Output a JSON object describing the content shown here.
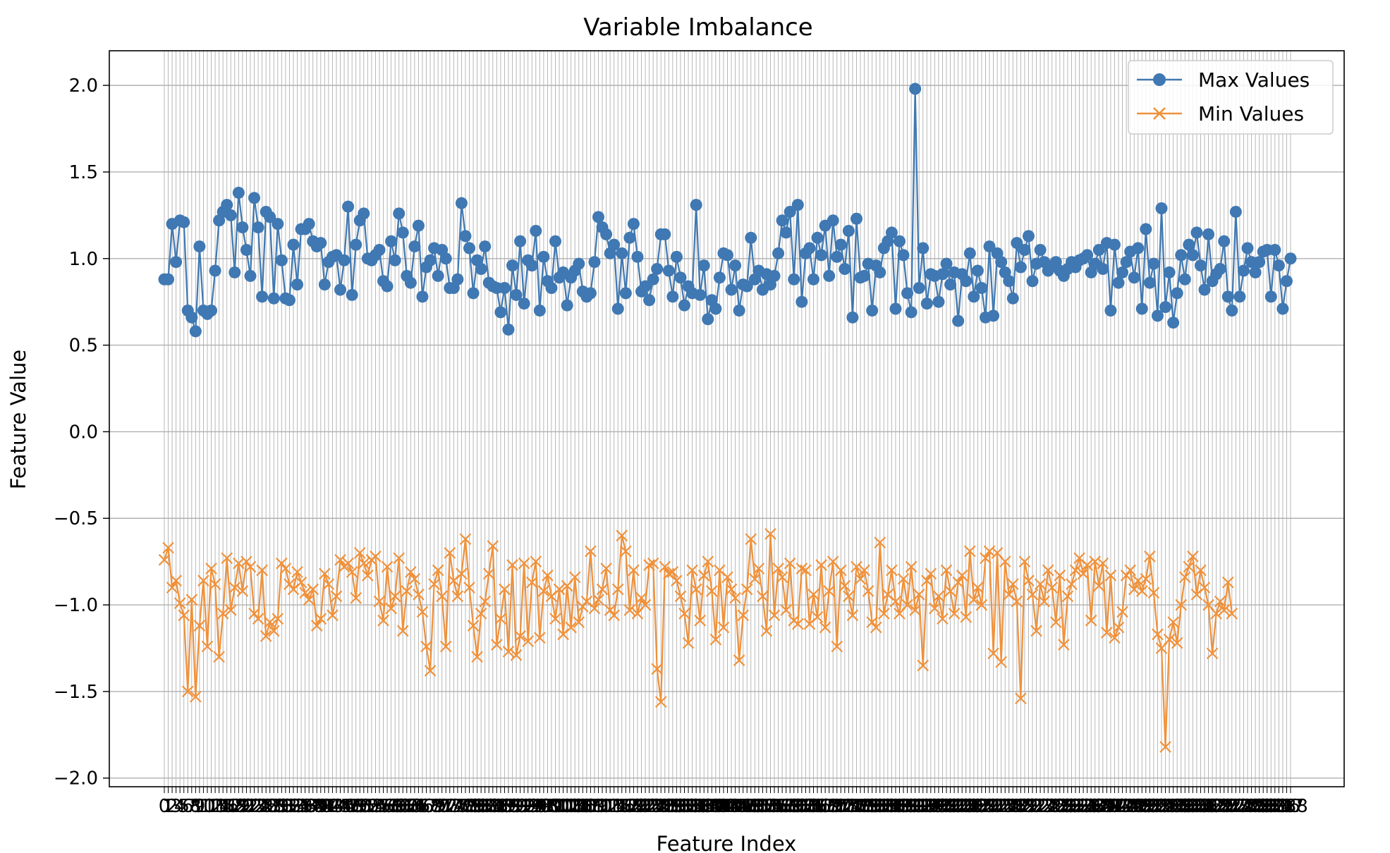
{
  "chart_data": {
    "type": "line",
    "title": "Variable Imbalance",
    "xlabel": "Feature Index",
    "ylabel": "Feature Value",
    "ylim": [
      -2.05,
      2.2
    ],
    "yticks": [
      -2.0,
      -1.5,
      -1.0,
      -0.5,
      0.0,
      0.5,
      1.0,
      1.5,
      2.0
    ],
    "ytick_labels": [
      "−2.0",
      "−1.5",
      "−1.0",
      "−0.5",
      "0.0",
      "0.5",
      "1.0",
      "1.5",
      "2.0"
    ],
    "x_start": 0,
    "grid": true,
    "legend_position": "top-right",
    "series": [
      {
        "name": "Max Values",
        "color": "#3f78b2",
        "marker": "circle",
        "values": [
          0.88,
          0.88,
          1.2,
          0.98,
          1.22,
          1.21,
          0.7,
          0.66,
          0.58,
          1.07,
          0.7,
          0.68,
          0.7,
          0.93,
          1.22,
          1.27,
          1.31,
          1.25,
          0.92,
          1.38,
          1.18,
          1.05,
          0.9,
          1.35,
          1.18,
          0.78,
          1.27,
          1.24,
          0.77,
          1.2,
          0.99,
          0.77,
          0.76,
          1.08,
          0.85,
          1.17,
          1.17,
          1.2,
          1.1,
          1.07,
          1.09,
          0.85,
          0.98,
          1.01,
          1.02,
          0.82,
          0.99,
          1.3,
          0.79,
          1.08,
          1.22,
          1.26,
          1.0,
          0.99,
          1.02,
          1.05,
          0.87,
          0.84,
          1.1,
          0.99,
          1.26,
          1.15,
          0.9,
          0.86,
          1.07,
          1.19,
          0.78,
          0.95,
          0.99,
          1.06,
          0.9,
          1.05,
          1.0,
          0.83,
          0.83,
          0.88,
          1.32,
          1.13,
          1.06,
          0.8,
          0.99,
          0.94,
          1.07,
          0.86,
          0.84,
          0.83,
          0.69,
          0.83,
          0.59,
          0.96,
          0.79,
          1.1,
          0.74,
          0.99,
          0.96,
          1.16,
          0.7,
          1.01,
          0.87,
          0.83,
          1.1,
          0.89,
          0.92,
          0.73,
          0.89,
          0.93,
          0.97,
          0.81,
          0.78,
          0.8,
          0.98,
          1.24,
          1.18,
          1.14,
          1.03,
          1.08,
          0.71,
          1.03,
          0.8,
          1.12,
          1.2,
          1.01,
          0.81,
          0.84,
          0.76,
          0.88,
          0.94,
          1.14,
          1.14,
          0.93,
          0.78,
          1.01,
          0.89,
          0.73,
          0.84,
          0.8,
          1.31,
          0.79,
          0.96,
          0.65,
          0.76,
          0.71,
          0.89,
          1.03,
          1.02,
          0.82,
          0.96,
          0.7,
          0.85,
          0.84,
          1.12,
          0.88,
          0.93,
          0.82,
          0.91,
          0.85,
          0.9,
          1.03,
          1.22,
          1.15,
          1.27,
          0.88,
          1.31,
          0.75,
          1.03,
          1.06,
          0.88,
          1.12,
          1.02,
          1.19,
          0.9,
          1.22,
          1.01,
          1.08,
          0.94,
          1.16,
          0.66,
          1.23,
          0.89,
          0.9,
          0.97,
          0.7,
          0.96,
          0.92,
          1.06,
          1.1,
          1.15,
          0.71,
          1.1,
          1.02,
          0.8,
          0.69,
          1.98,
          0.83,
          1.06,
          0.74,
          0.91,
          0.9,
          0.75,
          0.91,
          0.97,
          0.85,
          0.92,
          0.64,
          0.91,
          0.87,
          1.03,
          0.78,
          0.93,
          0.83,
          0.66,
          1.07,
          0.67,
          1.03,
          0.98,
          0.92,
          0.87,
          0.77,
          1.09,
          0.95,
          1.05,
          1.13,
          0.87,
          0.97,
          1.05,
          0.98,
          0.93,
          0.96,
          0.98,
          0.93,
          0.9,
          0.94,
          0.98,
          0.95,
          0.99,
          1.0,
          1.02,
          0.92,
          0.97,
          1.05,
          0.94,
          1.09,
          0.7,
          1.08,
          0.86,
          0.92,
          0.98,
          1.04,
          0.89,
          1.06,
          0.71,
          1.17,
          0.86,
          0.97,
          0.67,
          1.29,
          0.72,
          0.92,
          0.63,
          0.8,
          1.02,
          0.88,
          1.08,
          1.02,
          1.15,
          0.96,
          0.82,
          1.14,
          0.87,
          0.91,
          0.94,
          1.1,
          0.78,
          0.7,
          1.27,
          0.78,
          0.93,
          1.06,
          0.98,
          0.92,
          0.98,
          1.04,
          1.05,
          0.78,
          1.05,
          0.96,
          0.71,
          0.87,
          1.0
        ]
      },
      {
        "name": "Min Values",
        "color": "#f0913a",
        "marker": "x",
        "values": [
          -0.74,
          -0.67,
          -0.9,
          -0.86,
          -0.99,
          -1.06,
          -1.5,
          -0.97,
          -1.53,
          -1.12,
          -0.86,
          -1.24,
          -0.79,
          -0.88,
          -1.3,
          -1.05,
          -0.73,
          -1.03,
          -0.9,
          -0.76,
          -0.92,
          -0.75,
          -0.78,
          -1.05,
          -1.08,
          -0.8,
          -1.18,
          -1.1,
          -1.15,
          -1.08,
          -0.76,
          -0.79,
          -0.88,
          -0.91,
          -0.81,
          -0.87,
          -0.93,
          -0.97,
          -0.91,
          -1.12,
          -1.08,
          -0.82,
          -0.88,
          -1.06,
          -0.95,
          -0.74,
          -0.78,
          -0.76,
          -0.81,
          -0.96,
          -0.7,
          -0.76,
          -0.83,
          -0.74,
          -0.72,
          -0.98,
          -1.09,
          -0.78,
          -1.02,
          -0.95,
          -0.73,
          -1.15,
          -0.92,
          -0.81,
          -0.85,
          -0.94,
          -1.04,
          -1.24,
          -1.38,
          -0.88,
          -0.8,
          -0.95,
          -1.24,
          -0.7,
          -0.86,
          -0.95,
          -0.82,
          -0.62,
          -0.9,
          -1.12,
          -1.3,
          -1.05,
          -0.98,
          -0.82,
          -0.66,
          -1.23,
          -1.08,
          -0.91,
          -1.27,
          -0.77,
          -1.29,
          -1.18,
          -0.76,
          -1.21,
          -0.87,
          -0.75,
          -1.19,
          -0.92,
          -0.83,
          -0.95,
          -1.08,
          -0.91,
          -1.17,
          -0.89,
          -1.13,
          -0.84,
          -1.1,
          -1.01,
          -0.98,
          -0.69,
          -1.02,
          -0.97,
          -0.91,
          -0.79,
          -1.03,
          -1.06,
          -0.91,
          -0.6,
          -0.69,
          -1.03,
          -0.8,
          -1.05,
          -0.96,
          -1.0,
          -0.77,
          -0.76,
          -1.37,
          -1.56,
          -0.78,
          -0.82,
          -0.81,
          -0.86,
          -0.95,
          -1.05,
          -1.22,
          -0.8,
          -0.91,
          -1.09,
          -0.83,
          -0.75,
          -0.92,
          -1.2,
          -0.8,
          -1.13,
          -0.84,
          -0.91,
          -0.96,
          -1.32,
          -1.06,
          -0.91,
          -0.62,
          -0.85,
          -0.79,
          -0.95,
          -1.15,
          -0.59,
          -1.06,
          -0.79,
          -0.84,
          -1.03,
          -0.76,
          -1.09,
          -1.11,
          -0.79,
          -0.8,
          -1.11,
          -0.94,
          -1.07,
          -0.77,
          -1.13,
          -0.92,
          -0.75,
          -1.24,
          -0.8,
          -0.89,
          -0.95,
          -1.06,
          -0.78,
          -0.85,
          -0.8,
          -0.92,
          -1.1,
          -1.13,
          -0.64,
          -1.05,
          -0.94,
          -0.8,
          -0.98,
          -1.05,
          -0.85,
          -1.0,
          -0.78,
          -1.03,
          -0.94,
          -1.35,
          -0.86,
          -0.82,
          -1.02,
          -0.95,
          -1.08,
          -0.8,
          -0.92,
          -1.05,
          -0.87,
          -0.83,
          -1.07,
          -0.69,
          -0.97,
          -0.9,
          -1.0,
          -0.73,
          -0.69,
          -1.28,
          -0.7,
          -1.33,
          -0.75,
          -0.94,
          -0.88,
          -0.98,
          -1.54,
          -0.75,
          -0.86,
          -0.94,
          -1.15,
          -0.88,
          -0.98,
          -0.8,
          -0.9,
          -1.1,
          -0.83,
          -1.23,
          -0.95,
          -0.88,
          -0.8,
          -0.73,
          -0.82,
          -0.77,
          -1.09,
          -0.75,
          -0.89,
          -0.76,
          -1.16,
          -0.83,
          -1.19,
          -1.13,
          -1.04,
          -0.83,
          -0.8,
          -0.91,
          -0.86,
          -0.92,
          -0.85,
          -0.72,
          -0.93,
          -1.17,
          -1.25,
          -1.82,
          -1.2,
          -1.1,
          -1.22,
          -1.0,
          -0.84,
          -0.78,
          -0.72,
          -0.94,
          -0.8,
          -0.9,
          -1.0,
          -1.28,
          -1.05,
          -0.98,
          -1.03,
          -0.87,
          -1.05
        ]
      }
    ]
  }
}
